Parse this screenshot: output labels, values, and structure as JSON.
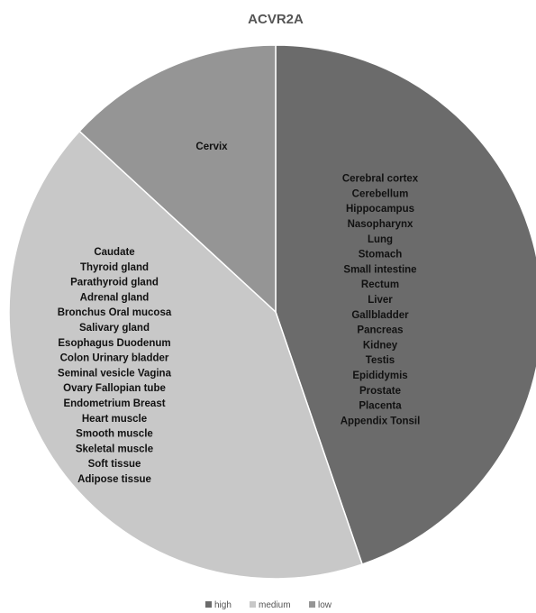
{
  "chart_data": {
    "type": "pie",
    "title": "ACVR2A",
    "legend": {
      "position": "bottom"
    },
    "slices": [
      {
        "name": "high",
        "value": 17,
        "color": "#6b6b6b",
        "labels": [
          "Cerebral cortex",
          "Cerebellum",
          "Hippocampus",
          "Nasopharynx",
          "Lung",
          "Stomach",
          "Small intestine",
          "Rectum",
          "Liver",
          "Gallbladder",
          "Pancreas",
          "Kidney",
          "Testis",
          "Epididymis",
          "Prostate",
          "Placenta",
          "Appendix Tonsil"
        ]
      },
      {
        "name": "medium",
        "value": 16,
        "color": "#c8c8c8",
        "labels": [
          "Caudate",
          "Thyroid gland",
          "Parathyroid gland",
          "Adrenal gland",
          "Bronchus Oral mucosa",
          "Salivary gland",
          "Esophagus Duodenum",
          "Colon Urinary bladder",
          "Seminal vesicle Vagina",
          "Ovary Fallopian tube",
          "Endometrium Breast",
          "Heart muscle",
          "Smooth muscle",
          "Skeletal muscle",
          "Soft tissue",
          "Adipose tissue"
        ]
      },
      {
        "name": "low",
        "value": 5,
        "color": "#959595",
        "labels": [
          "Cervix"
        ]
      }
    ]
  }
}
